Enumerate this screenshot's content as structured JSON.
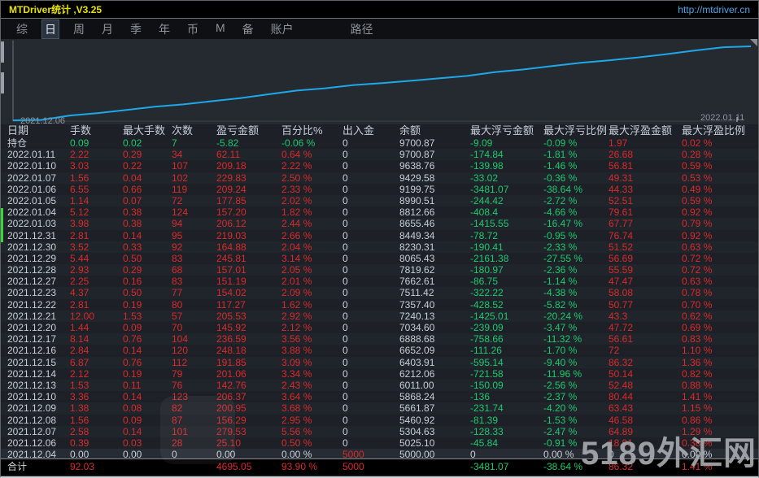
{
  "window": {
    "title": "MTDriver统计 ,V3.25",
    "link": "http://mtdriver.cn"
  },
  "menu": {
    "items": [
      "综",
      "日",
      "周",
      "月",
      "季",
      "年",
      "币",
      "M",
      "备",
      "账户"
    ],
    "active": "日",
    "path_label": "路径"
  },
  "chart_data": {
    "type": "line",
    "title": "",
    "x_start_label": "2021.12.06",
    "x_end_label": "2022.01.11",
    "x": [
      "2021.12.04",
      "2021.12.06",
      "2021.12.07",
      "2021.12.08",
      "2021.12.09",
      "2021.12.10",
      "2021.12.13",
      "2021.12.14",
      "2021.12.15",
      "2021.12.16",
      "2021.12.17",
      "2021.12.20",
      "2021.12.21",
      "2021.12.22",
      "2021.12.23",
      "2021.12.27",
      "2021.12.28",
      "2021.12.29",
      "2021.12.30",
      "2021.12.31",
      "2022.01.03",
      "2022.01.04",
      "2022.01.05",
      "2022.01.06",
      "2022.01.07",
      "2022.01.10",
      "2022.01.11"
    ],
    "series": [
      {
        "name": "余额",
        "values": [
          5000.0,
          5025.1,
          5304.63,
          5460.92,
          5661.87,
          5868.24,
          6011.0,
          6212.06,
          6403.91,
          6652.09,
          6888.68,
          7034.6,
          7240.13,
          7357.4,
          7511.42,
          7662.61,
          7819.62,
          8065.43,
          8230.31,
          8449.34,
          8655.46,
          8812.66,
          8990.51,
          9199.75,
          9429.58,
          9638.76,
          9700.87
        ]
      }
    ],
    "ylim": [
      5000,
      9750
    ],
    "grid": false,
    "legend": false
  },
  "table": {
    "headers": [
      "日期",
      "手数",
      "最大手数",
      "次数",
      "盈亏金额",
      "百分比%",
      "出入金",
      "余额",
      "最大浮亏金额",
      "最大浮亏比例",
      "最大浮盈金额",
      "最大浮盈比例"
    ],
    "position_row": [
      "持仓",
      "0.09",
      "0.02",
      "7",
      "-5.82",
      "-0.06 %",
      "0",
      "9700.87",
      "-9.09",
      "-0.09 %",
      "1.97",
      "0.02 %"
    ],
    "rows": [
      [
        "2022.01.11",
        "2.22",
        "0.29",
        "34",
        "62.11",
        "0.64 %",
        "0",
        "9700.87",
        "-174.84",
        "-1.81 %",
        "26.68",
        "0.28 %"
      ],
      [
        "2022.01.10",
        "3.03",
        "0.22",
        "107",
        "209.18",
        "2.22 %",
        "0",
        "9638.76",
        "-139.98",
        "-1.46 %",
        "56.81",
        "0.59 %"
      ],
      [
        "2022.01.07",
        "1.56",
        "0.04",
        "102",
        "229.83",
        "2.50 %",
        "0",
        "9429.58",
        "-33.02",
        "-0.36 %",
        "49.31",
        "0.53 %"
      ],
      [
        "2022.01.06",
        "6.55",
        "0.66",
        "119",
        "209.24",
        "2.33 %",
        "0",
        "9199.75",
        "-3481.07",
        "-38.64 %",
        "44.33",
        "0.49 %"
      ],
      [
        "2022.01.05",
        "1.14",
        "0.07",
        "72",
        "177.85",
        "2.02 %",
        "0",
        "8990.51",
        "-244.42",
        "-2.72 %",
        "52.51",
        "0.59 %"
      ],
      [
        "2022.01.04",
        "5.12",
        "0.38",
        "124",
        "157.20",
        "1.82 %",
        "0",
        "8812.66",
        "-408.4",
        "-4.66 %",
        "79.61",
        "0.92 %"
      ],
      [
        "2022.01.03",
        "3.98",
        "0.38",
        "94",
        "206.12",
        "2.44 %",
        "0",
        "8655.46",
        "-1415.55",
        "-16.47 %",
        "67.77",
        "0.79 %"
      ],
      [
        "2021.12.31",
        "2.81",
        "0.14",
        "95",
        "219.03",
        "2.66 %",
        "0",
        "8449.34",
        "-78.72",
        "-0.95 %",
        "76.74",
        "0.92 %"
      ],
      [
        "2021.12.30",
        "3.52",
        "0.33",
        "92",
        "164.88",
        "2.04 %",
        "0",
        "8230.31",
        "-190.41",
        "-2.33 %",
        "51.52",
        "0.63 %"
      ],
      [
        "2021.12.29",
        "5.44",
        "0.50",
        "83",
        "245.81",
        "3.14 %",
        "0",
        "8065.43",
        "-2161.38",
        "-27.55 %",
        "56.69",
        "0.72 %"
      ],
      [
        "2021.12.28",
        "2.93",
        "0.29",
        "68",
        "157.01",
        "2.05 %",
        "0",
        "7819.62",
        "-180.97",
        "-2.36 %",
        "55.59",
        "0.72 %"
      ],
      [
        "2021.12.27",
        "2.25",
        "0.16",
        "83",
        "151.19",
        "2.01 %",
        "0",
        "7662.61",
        "-86.75",
        "-1.14 %",
        "47.47",
        "0.63 %"
      ],
      [
        "2021.12.23",
        "4.37",
        "0.50",
        "77",
        "154.02",
        "2.09 %",
        "0",
        "7511.42",
        "-322.22",
        "-4.38 %",
        "58.08",
        "0.78 %"
      ],
      [
        "2021.12.22",
        "2.81",
        "0.19",
        "80",
        "117.27",
        "1.62 %",
        "0",
        "7357.40",
        "-428.52",
        "-5.82 %",
        "50.77",
        "0.70 %"
      ],
      [
        "2021.12.21",
        "12.00",
        "1.53",
        "57",
        "205.53",
        "2.92 %",
        "0",
        "7240.13",
        "-1425.01",
        "-20.24 %",
        "43.3",
        "0.62 %"
      ],
      [
        "2021.12.20",
        "1.44",
        "0.09",
        "70",
        "145.92",
        "2.12 %",
        "0",
        "7034.60",
        "-239.09",
        "-3.47 %",
        "47.72",
        "0.69 %"
      ],
      [
        "2021.12.17",
        "8.14",
        "0.76",
        "104",
        "236.59",
        "3.56 %",
        "0",
        "6888.68",
        "-758.66",
        "-11.32 %",
        "56.61",
        "0.83 %"
      ],
      [
        "2021.12.16",
        "2.84",
        "0.14",
        "120",
        "248.18",
        "3.88 %",
        "0",
        "6652.09",
        "-111.26",
        "-1.70 %",
        "72",
        "1.10 %"
      ],
      [
        "2021.12.15",
        "6.87",
        "0.76",
        "112",
        "191.85",
        "3.09 %",
        "0",
        "6403.91",
        "-595.14",
        "-9.40 %",
        "86.32",
        "1.36 %"
      ],
      [
        "2021.12.14",
        "2.12",
        "0.19",
        "79",
        "201.06",
        "3.34 %",
        "0",
        "6212.06",
        "-721.58",
        "-11.96 %",
        "50.14",
        "0.82 %"
      ],
      [
        "2021.12.13",
        "1.53",
        "0.11",
        "76",
        "142.76",
        "2.43 %",
        "0",
        "6011.00",
        "-150.09",
        "-2.56 %",
        "52.48",
        "0.88 %"
      ],
      [
        "2021.12.10",
        "3.36",
        "0.14",
        "123",
        "206.37",
        "3.64 %",
        "0",
        "5868.24",
        "-136",
        "-2.37 %",
        "80.44",
        "1.41 %"
      ],
      [
        "2021.12.09",
        "1.38",
        "0.08",
        "82",
        "200.95",
        "3.68 %",
        "0",
        "5661.87",
        "-231.74",
        "-4.20 %",
        "63.43",
        "1.15 %"
      ],
      [
        "2021.12.08",
        "1.56",
        "0.09",
        "87",
        "156.29",
        "2.95 %",
        "0",
        "5460.92",
        "-81.39",
        "-1.53 %",
        "46.58",
        "0.86 %"
      ],
      [
        "2021.12.07",
        "2.58",
        "0.14",
        "101",
        "279.53",
        "5.56 %",
        "0",
        "5304.63",
        "-128.33",
        "-2.47 %",
        "64.89",
        "1.29 %"
      ],
      [
        "2021.12.06",
        "0.39",
        "0.03",
        "28",
        "25.10",
        "0.50 %",
        "0",
        "5025.10",
        "-45.84",
        "-0.91 %",
        "18.91",
        "0.38 %"
      ],
      [
        "2021.12.04",
        "0.00",
        "0.00",
        "0",
        "0.00",
        "0.00 %",
        "5000",
        "5000.00",
        "0",
        "0.00 %",
        "0",
        "0.00 %"
      ]
    ],
    "total_row": [
      "合计",
      "92.03",
      "",
      "",
      "4695.05",
      "93.90 %",
      "5000",
      "",
      "-3481.07",
      "-38.64 %",
      "86.32",
      "1.41 %"
    ]
  },
  "watermark": {
    "text": "5189外汇网"
  },
  "colors": {
    "accent_title": "#e8e400",
    "link_blue": "#4da6e8",
    "line_cyan": "#1fa7e8",
    "red": "#d92b2b",
    "green": "#1dc96e",
    "text_light": "#c7cfd8",
    "chart_bg": "#252a31",
    "table_bg": "#1d2127",
    "green_marker": "#3bd43b"
  }
}
